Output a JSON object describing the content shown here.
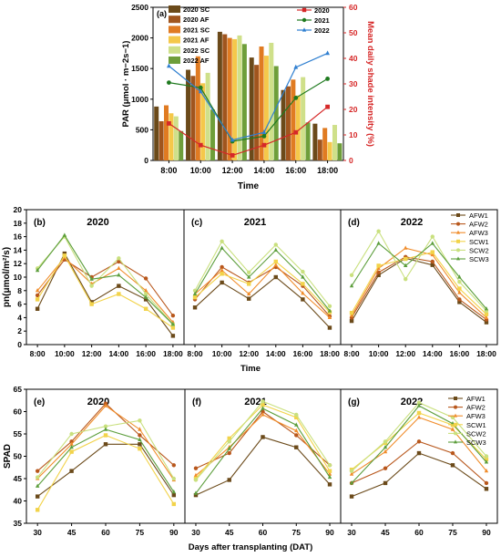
{
  "colors": {
    "axis": "#000000",
    "shade_axis": "#d62828",
    "s2020": "#d62828",
    "s2021": "#1f7a1f",
    "s2022": "#2f7fd0",
    "bar_2020_SC": "#6b4a1a",
    "bar_2020_AF": "#a0551e",
    "bar_2021_SC": "#e07b22",
    "bar_2021_AF": "#f5c84a",
    "bar_2022_SC": "#cfe08a",
    "bar_2022_AF": "#6e9e3a",
    "AFW1": "#6b4a1a",
    "AFW2": "#b8571c",
    "AFW3": "#f08c2a",
    "SCW1": "#f2d34a",
    "SCW2": "#c9e07e",
    "SCW3": "#5c9e3c"
  },
  "chart_data": [
    {
      "panel": "(a)",
      "type": "bar",
      "xlabel": "Time",
      "ylabel": "PAR (μmol · m−2s−1)",
      "ylim": [
        0,
        2500
      ],
      "yticks": [
        "0",
        "500",
        "1000",
        "1500",
        "2000",
        "2500"
      ],
      "categories": [
        "8:00",
        "10:00",
        "12:00",
        "14:00",
        "16:00",
        "18:00"
      ],
      "series": [
        {
          "name": "2020 SC",
          "values": [
            880,
            1480,
            2100,
            1680,
            1150,
            600
          ]
        },
        {
          "name": "2020 AF",
          "values": [
            640,
            1380,
            2060,
            1560,
            1210,
            340
          ]
        },
        {
          "name": "2021 SC",
          "values": [
            900,
            1700,
            2000,
            1860,
            1320,
            530
          ]
        },
        {
          "name": "2021 AF",
          "values": [
            770,
            1260,
            1980,
            1710,
            1060,
            300
          ]
        },
        {
          "name": "2022 SC",
          "values": [
            720,
            1430,
            2040,
            1920,
            1360,
            580
          ]
        },
        {
          "name": "2022 AF",
          "values": [
            480,
            830,
            1900,
            1540,
            620,
            280
          ]
        }
      ],
      "secondary": {
        "type": "line",
        "ylabel": "Mean daily shade intensity (%)",
        "ylim": [
          0,
          60
        ],
        "yticks": [
          "0",
          "10",
          "20",
          "30",
          "40",
          "50",
          "60"
        ],
        "legend": "top-right",
        "series": [
          {
            "name": "2020",
            "values": [
              14.5,
              6,
              2,
              6,
              11,
              21
            ]
          },
          {
            "name": "2021",
            "values": [
              30.5,
              28.5,
              7.5,
              9.5,
              24.5,
              32
            ]
          },
          {
            "name": "2022",
            "values": [
              37,
              27,
              8,
              11,
              36.5,
              42
            ]
          }
        ]
      }
    },
    {
      "type": "line",
      "ylabel": "pn(μmol/m²/s)",
      "xlabel": "Time",
      "ylim": [
        0,
        20
      ],
      "yticks": [
        "0",
        "2",
        "4",
        "6",
        "8",
        "10",
        "12",
        "14",
        "16",
        "18",
        "20"
      ],
      "x": [
        "8:00",
        "10:00",
        "12:00",
        "14:00",
        "16:00",
        "18:00"
      ],
      "legend": [
        "AFW1",
        "AFW2",
        "AFW3",
        "SCW1",
        "SCW2",
        "SCW3"
      ],
      "panels": [
        {
          "label": "(b)",
          "title": "2020",
          "series": [
            {
              "name": "AFW1",
              "values": [
                5.3,
                13.5,
                6.3,
                8.7,
                6.7,
                1.3
              ]
            },
            {
              "name": "AFW2",
              "values": [
                7.3,
                12.6,
                10.0,
                12.3,
                9.8,
                4.3
              ]
            },
            {
              "name": "AFW3",
              "values": [
                8.0,
                12.9,
                9.0,
                11.3,
                8.0,
                3.3
              ]
            },
            {
              "name": "SCW1",
              "values": [
                6.7,
                13.2,
                6.0,
                7.5,
                5.3,
                2.5
              ]
            },
            {
              "name": "SCW2",
              "values": [
                11.3,
                16.0,
                8.7,
                12.8,
                7.5,
                3.0
              ]
            },
            {
              "name": "SCW3",
              "values": [
                11.0,
                16.2,
                9.7,
                10.3,
                7.0,
                3.0
              ]
            }
          ]
        },
        {
          "label": "(c)",
          "title": "2021",
          "series": [
            {
              "name": "AFW1",
              "values": [
                5.5,
                9.2,
                6.8,
                10.0,
                6.7,
                2.5
              ]
            },
            {
              "name": "AFW2",
              "values": [
                6.7,
                11.5,
                9.2,
                11.5,
                8.7,
                4.2
              ]
            },
            {
              "name": "AFW3",
              "values": [
                7.5,
                11.0,
                7.5,
                11.8,
                7.6,
                4.0
              ]
            },
            {
              "name": "SCW1",
              "values": [
                7.0,
                10.5,
                9.0,
                12.3,
                9.0,
                4.8
              ]
            },
            {
              "name": "SCW2",
              "values": [
                8.0,
                15.3,
                10.7,
                14.8,
                10.8,
                5.7
              ]
            },
            {
              "name": "SCW3",
              "values": [
                7.5,
                14.3,
                10.0,
                14.0,
                10.0,
                5.0
              ]
            }
          ]
        },
        {
          "label": "(d)",
          "title": "2022",
          "series": [
            {
              "name": "AFW1",
              "values": [
                3.5,
                10.3,
                12.8,
                11.8,
                6.3,
                3.3
              ]
            },
            {
              "name": "AFW2",
              "values": [
                4.0,
                10.7,
                13.0,
                12.3,
                6.7,
                3.7
              ]
            },
            {
              "name": "AFW3",
              "values": [
                4.3,
                11.3,
                14.3,
                13.3,
                7.7,
                4.0
              ]
            },
            {
              "name": "SCW1",
              "values": [
                4.7,
                11.7,
                12.7,
                13.7,
                8.3,
                4.5
              ]
            },
            {
              "name": "SCW2",
              "values": [
                10.3,
                16.8,
                9.7,
                16.0,
                9.3,
                5.0
              ]
            },
            {
              "name": "SCW3",
              "values": [
                8.7,
                15.0,
                11.7,
                15.0,
                10.0,
                5.3
              ]
            }
          ]
        }
      ]
    },
    {
      "type": "line",
      "ylabel": "SPAD",
      "xlabel": "Days after transplanting (DAT)",
      "ylim": [
        35,
        65
      ],
      "yticks": [
        "35",
        "40",
        "45",
        "50",
        "55",
        "60",
        "65"
      ],
      "x": [
        "30",
        "45",
        "60",
        "75",
        "90"
      ],
      "legend": [
        "AFW1",
        "AFW2",
        "AFW3",
        "SCW1",
        "SCW2",
        "SCW3"
      ],
      "panels": [
        {
          "label": "(e)",
          "title": "2020",
          "series": [
            {
              "name": "AFW1",
              "values": [
                41.0,
                46.7,
                52.7,
                52.7,
                41.3
              ]
            },
            {
              "name": "AFW2",
              "values": [
                46.7,
                53.3,
                61.8,
                54.7,
                48.0
              ]
            },
            {
              "name": "AFW3",
              "values": [
                45.0,
                52.7,
                61.3,
                56.0,
                44.7
              ]
            },
            {
              "name": "SCW1",
              "values": [
                38.0,
                51.0,
                54.7,
                51.7,
                39.3
              ]
            },
            {
              "name": "SCW2",
              "values": [
                45.3,
                55.0,
                56.7,
                58.0,
                45.0
              ]
            },
            {
              "name": "SCW3",
              "values": [
                43.3,
                52.0,
                56.0,
                53.7,
                42.0
              ]
            }
          ]
        },
        {
          "label": "(f)",
          "title": "2021",
          "series": [
            {
              "name": "AFW1",
              "values": [
                41.3,
                44.7,
                54.3,
                52.0,
                43.7
              ]
            },
            {
              "name": "AFW2",
              "values": [
                47.3,
                50.7,
                60.0,
                54.7,
                48.0
              ]
            },
            {
              "name": "AFW3",
              "values": [
                45.7,
                52.0,
                59.3,
                55.7,
                46.0
              ]
            },
            {
              "name": "SCW1",
              "values": [
                45.0,
                54.0,
                61.5,
                58.7,
                46.7
              ]
            },
            {
              "name": "SCW2",
              "values": [
                44.7,
                53.3,
                62.3,
                59.3,
                48.0
              ]
            },
            {
              "name": "SCW3",
              "values": [
                41.7,
                51.7,
                60.7,
                57.0,
                45.3
              ]
            }
          ]
        },
        {
          "label": "(g)",
          "title": "2022",
          "series": [
            {
              "name": "AFW1",
              "values": [
                41.0,
                44.0,
                50.7,
                48.0,
                42.7
              ]
            },
            {
              "name": "AFW2",
              "values": [
                44.0,
                47.3,
                53.3,
                50.7,
                44.0
              ]
            },
            {
              "name": "AFW3",
              "values": [
                46.0,
                51.0,
                58.7,
                56.0,
                46.7
              ]
            },
            {
              "name": "SCW1",
              "values": [
                47.0,
                53.0,
                59.7,
                57.0,
                49.3
              ]
            },
            {
              "name": "SCW2",
              "values": [
                46.7,
                53.3,
                62.0,
                58.7,
                50.0
              ]
            },
            {
              "name": "SCW3",
              "values": [
                44.0,
                52.0,
                61.3,
                57.3,
                48.7
              ]
            }
          ]
        }
      ]
    }
  ]
}
